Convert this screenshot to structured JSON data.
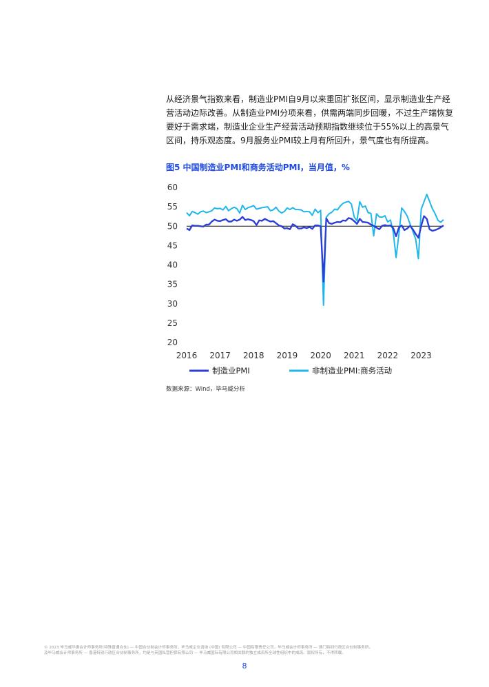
{
  "paragraph": {
    "lines": [
      "从经济景气指数来看，制造业PMI自9月以来重回扩张区间，显示制造业生产经",
      "营活动边际改善。从制造业PMI分项来看，供需两端同步回暖，不过生产端恢复",
      "要好于需求端，制造业企业生产经营活动预期指数继续位于55%以上的高景气",
      "区间，持乐观态度。9月服务业PMI较上月有所回升，景气度也有所提高。"
    ]
  },
  "figure": {
    "title": "图5  中国制造业PMI和商务活动PMI，当月值，%",
    "source": "数据来源：Wind，毕马威分析"
  },
  "chart_data": {
    "type": "line",
    "ylim": [
      20,
      60
    ],
    "yticks": [
      "60",
      "55",
      "50",
      "45",
      "40",
      "35",
      "30",
      "25",
      "20"
    ],
    "xticks": [
      "2016",
      "2017",
      "2018",
      "2019",
      "2020",
      "2021",
      "2022",
      "2023"
    ],
    "x_start": "2016-01",
    "x_end": "2023-09",
    "legend_position": "bottom",
    "series": [
      {
        "name": "制造业PMI",
        "color": "#2b3fd6",
        "values": [
          49.4,
          49.0,
          50.2,
          50.1,
          50.1,
          50.0,
          49.9,
          50.4,
          50.4,
          51.2,
          51.7,
          51.4,
          51.3,
          51.6,
          51.8,
          51.2,
          51.2,
          51.7,
          51.4,
          51.7,
          52.4,
          51.6,
          51.8,
          51.6,
          51.3,
          50.3,
          51.5,
          51.4,
          51.9,
          51.5,
          51.2,
          51.3,
          50.8,
          50.2,
          50.0,
          49.4,
          49.5,
          49.2,
          50.5,
          50.1,
          49.4,
          49.4,
          49.7,
          49.5,
          49.8,
          49.3,
          50.2,
          50.2,
          50.0,
          35.7,
          52.0,
          50.8,
          50.6,
          50.9,
          51.1,
          51.0,
          51.5,
          51.4,
          52.1,
          51.9,
          51.3,
          50.6,
          51.9,
          51.1,
          51.0,
          50.9,
          50.4,
          50.1,
          49.6,
          49.2,
          50.1,
          50.3,
          50.1,
          50.2,
          49.5,
          47.4,
          49.6,
          50.2,
          49.0,
          49.4,
          50.1,
          49.2,
          48.0,
          47.0,
          50.1,
          52.6,
          51.9,
          49.2,
          48.8,
          49.0,
          49.3,
          49.7,
          50.2
        ]
      },
      {
        "name": "非制造业PMI:商务活动",
        "color": "#1fb6ea",
        "values": [
          53.5,
          52.7,
          53.8,
          53.5,
          53.1,
          53.7,
          53.9,
          53.5,
          53.7,
          54.0,
          54.7,
          54.5,
          54.6,
          54.2,
          55.1,
          54.0,
          54.5,
          54.9,
          54.5,
          53.4,
          55.4,
          54.3,
          54.8,
          55.0,
          55.3,
          54.4,
          54.6,
          54.8,
          54.9,
          55.0,
          54.0,
          54.2,
          54.9,
          53.9,
          53.4,
          53.8,
          54.7,
          54.3,
          54.8,
          54.3,
          54.3,
          54.2,
          53.7,
          53.8,
          53.7,
          52.8,
          54.4,
          53.5,
          54.1,
          29.6,
          52.3,
          53.2,
          53.6,
          54.4,
          54.2,
          55.2,
          55.9,
          56.2,
          56.4,
          55.7,
          52.4,
          51.4,
          56.3,
          54.9,
          55.2,
          53.5,
          53.3,
          47.5,
          53.2,
          52.4,
          52.3,
          52.7,
          51.1,
          51.6,
          48.4,
          41.9,
          47.8,
          54.7,
          53.8,
          52.6,
          50.6,
          48.7,
          46.7,
          41.6,
          54.4,
          56.3,
          58.2,
          56.4,
          54.5,
          53.2,
          51.5,
          51.0,
          51.7
        ]
      }
    ]
  },
  "footer": {
    "lines": [
      "© 2023 毕马威华振会计师事务所(特殊普通合伙) — 中国合伙制会计师事务所，毕马威企业咨询 (中国) 有限公司 — 中国有限责任公司，毕马威会计师事务所 — 澳门特别行政区合伙制事务所，",
      "及毕马威会计师事务所 — 香港特别行政区合伙制事务所，均是与英国私营担保有限公司 — 毕马威国际有限公司相关联的独立成员所全球性组织中的成员。版权所有，不得转载。"
    ]
  },
  "page_number": "8"
}
